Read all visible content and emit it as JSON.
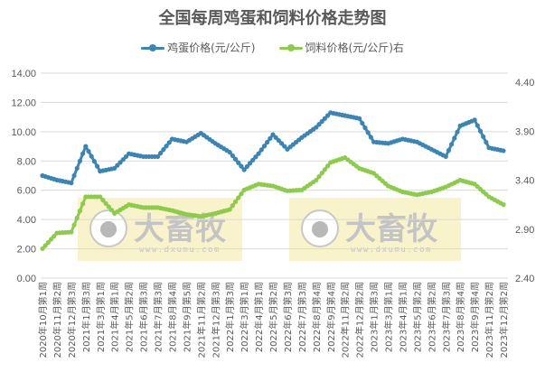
{
  "chart_data": {
    "type": "line",
    "title": "全国每周鸡蛋和饲料价格走势图",
    "xlabel": "",
    "ylabel": "",
    "grid": true,
    "legend_position": "top",
    "categories": [
      "2020年10月第1周",
      "2020年11月第2周",
      "2020年12月第3周",
      "2021年1月第3周",
      "2021年3月第1周",
      "2021年4月第1周",
      "2021年5月第2周",
      "2021年6月第3周",
      "2021年7月第3周",
      "2021年8月第4周",
      "2021年9月第5周",
      "2021年11月第2周",
      "2021年12月第3周",
      "2022年1月第3周",
      "2022年3月第1周",
      "2022年4月第1周",
      "2022年5月第2周",
      "2022年6月第3周",
      "2022年7月第3周",
      "2022年8月第4周",
      "2022年9月第4周",
      "2022年11月第2周",
      "2022年12月第2周",
      "2023年1月第3周",
      "2023年3月第1周",
      "2023年4月第1周",
      "2023年5月第2周",
      "2023年6月第2周",
      "2023年7月第3周",
      "2023年8月第4周",
      "2023年9月第4周",
      "2023年11月第2周",
      "2023年12月第2周"
    ],
    "series": [
      {
        "name": "鸡蛋价格(元/公斤)",
        "axis": "left",
        "color": "#3A85B5",
        "values": [
          7.0,
          6.7,
          6.5,
          9.0,
          7.3,
          7.5,
          8.5,
          8.3,
          8.3,
          9.5,
          9.3,
          9.9,
          9.2,
          8.6,
          7.4,
          8.5,
          9.8,
          8.8,
          9.6,
          10.3,
          11.3,
          11.1,
          10.9,
          9.3,
          9.2,
          9.5,
          9.3,
          8.8,
          8.3,
          10.4,
          10.8,
          8.9,
          8.7
        ]
      },
      {
        "name": "饲料价格(元/公斤)右",
        "axis": "right",
        "color": "#8DCB4A",
        "values": [
          2.7,
          2.86,
          2.87,
          3.23,
          3.23,
          3.06,
          3.15,
          3.12,
          3.12,
          3.09,
          3.05,
          3.03,
          3.06,
          3.1,
          3.3,
          3.36,
          3.34,
          3.29,
          3.3,
          3.4,
          3.58,
          3.63,
          3.52,
          3.47,
          3.34,
          3.28,
          3.25,
          3.28,
          3.33,
          3.4,
          3.36,
          3.23,
          3.15
        ]
      }
    ],
    "left_axis": {
      "ticks": [
        "0.00",
        "2.00",
        "4.00",
        "6.00",
        "8.00",
        "10.00",
        "12.00",
        "14.00"
      ],
      "ylim": [
        0,
        14
      ]
    },
    "right_axis": {
      "ticks": [
        "2.40",
        "2.90",
        "3.40",
        "3.90",
        "4.40"
      ],
      "ylim": [
        2.4,
        4.49
      ]
    }
  },
  "watermark": {
    "brand": "大畜牧",
    "url": "www.dxumu.com"
  },
  "colors": {
    "egg": "#3A85B5",
    "feed": "#8DCB4A",
    "grid": "#D9D9D9",
    "text": "#595959",
    "watermark_bg": "#F5EFB8"
  }
}
